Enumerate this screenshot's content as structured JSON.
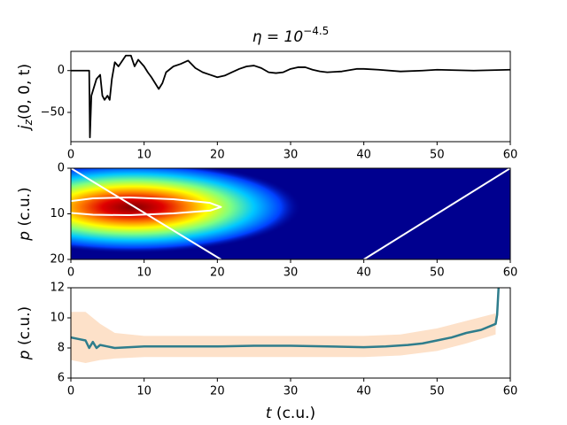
{
  "chart_data": [
    {
      "type": "line",
      "title": {
        "base": "η = 10",
        "exponent": "−4.5"
      },
      "ylabel": {
        "base": "j",
        "subscript": "z",
        "rest": "(0, 0, t)"
      },
      "xlim": [
        0,
        60
      ],
      "xticks": [
        0,
        10,
        20,
        30,
        40,
        50,
        60
      ],
      "ylim": [
        -85,
        23
      ],
      "yticks": [
        {
          "value": -50,
          "label": "−50"
        },
        0
      ],
      "series": [
        {
          "color": "#000000",
          "x": [
            0,
            2.5,
            2.6,
            2.8,
            3.5,
            4,
            4.3,
            4.6,
            5,
            5.3,
            5.6,
            6,
            6.5,
            7.5,
            8.2,
            8.7,
            9.2,
            10,
            10.5,
            11,
            12,
            12.5,
            13,
            14,
            15,
            16,
            17,
            18,
            19,
            20,
            21,
            22,
            23,
            24,
            25,
            26,
            27,
            28,
            29,
            30,
            31,
            32,
            33,
            34,
            35,
            37,
            39,
            40,
            42,
            45,
            48,
            50,
            55,
            60
          ],
          "values": [
            0,
            0,
            -80,
            -30,
            -10,
            -5,
            -30,
            -35,
            -30,
            -35,
            -10,
            10,
            5,
            18,
            18,
            5,
            13,
            5,
            -2,
            -8,
            -22,
            -15,
            -2,
            5,
            8,
            12,
            3,
            -2,
            -5,
            -8,
            -6,
            -2,
            2,
            5,
            6,
            3,
            -2,
            -3,
            -2,
            2,
            4,
            4,
            1,
            -1,
            -2,
            -1,
            2,
            2,
            1,
            -1,
            0,
            1,
            0,
            1
          ]
        }
      ]
    },
    {
      "type": "heatmap",
      "ylabel": {
        "base": "p",
        "rest": " (c.u.)"
      },
      "xlim": [
        0,
        60
      ],
      "xticks": [
        0,
        10,
        20,
        30,
        40,
        50,
        60
      ],
      "ylim": [
        20,
        0
      ],
      "yticks": [
        0,
        10,
        20
      ],
      "series": [
        {
          "color": "#ffffff",
          "x": [
            0,
            20.5
          ],
          "values": [
            0,
            20
          ]
        },
        {
          "color": "#ffffff",
          "x": [
            40,
            60
          ],
          "values": [
            20,
            0
          ]
        },
        {
          "color": "#ffffff",
          "x": [
            0,
            3,
            8,
            14,
            19,
            20.5,
            19,
            14,
            8,
            3,
            0
          ],
          "values": [
            7.2,
            6.6,
            6.4,
            6.8,
            7.6,
            8.5,
            9.3,
            9.9,
            10.3,
            10.2,
            9.8
          ]
        }
      ]
    },
    {
      "type": "line",
      "ylabel": {
        "base": "p",
        "rest": " (c.u.)"
      },
      "xlabel": {
        "base": "t",
        "rest": " (c.u.)"
      },
      "xlim": [
        0,
        60
      ],
      "xticks": [
        0,
        10,
        20,
        30,
        40,
        50,
        60
      ],
      "ylim": [
        6,
        12
      ],
      "yticks": [
        6,
        8,
        10,
        12
      ],
      "band": {
        "color": "#fddcc0",
        "x": [
          0,
          2,
          4,
          6,
          10,
          20,
          30,
          40,
          45,
          50,
          54,
          58
        ],
        "lower": [
          7.2,
          7.0,
          7.2,
          7.3,
          7.4,
          7.4,
          7.4,
          7.4,
          7.5,
          7.8,
          8.3,
          8.9
        ],
        "upper": [
          10.4,
          10.4,
          9.6,
          9.0,
          8.8,
          8.8,
          8.8,
          8.8,
          8.9,
          9.3,
          9.8,
          10.3
        ]
      },
      "series": [
        {
          "color": "#2e7d8c",
          "x": [
            0,
            1,
            2,
            2.5,
            3,
            3.5,
            4,
            5,
            6,
            8,
            10,
            15,
            20,
            25,
            30,
            35,
            40,
            43,
            46,
            48,
            50,
            52,
            54,
            56,
            58,
            58.2,
            58.4
          ],
          "values": [
            8.7,
            8.6,
            8.5,
            8.0,
            8.4,
            8.0,
            8.2,
            8.1,
            8.0,
            8.05,
            8.1,
            8.1,
            8.1,
            8.15,
            8.15,
            8.1,
            8.05,
            8.1,
            8.2,
            8.3,
            8.5,
            8.7,
            9.0,
            9.2,
            9.6,
            10.2,
            12
          ]
        }
      ]
    }
  ]
}
